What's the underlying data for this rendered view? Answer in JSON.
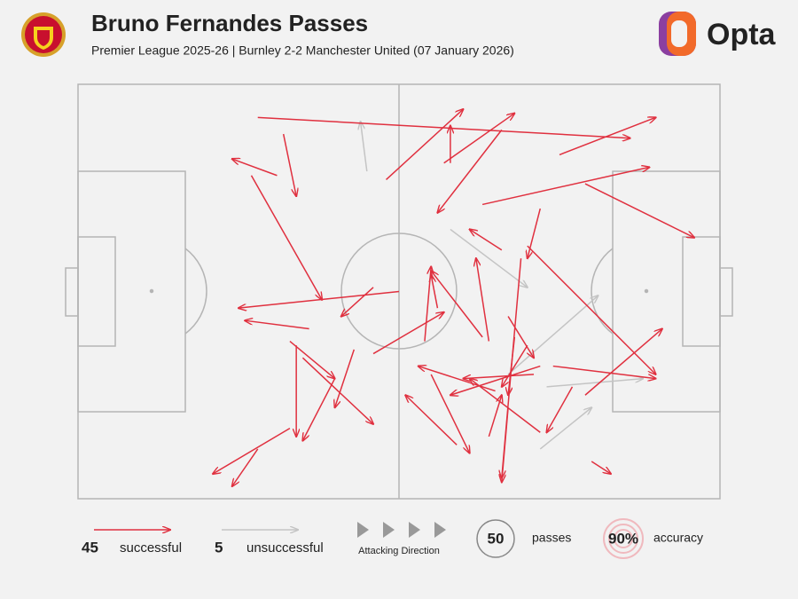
{
  "chart_data": {
    "type": "pass-map",
    "title": "Bruno Fernandes Passes",
    "subtitle": "Premier League 2025-26 | Burnley 2-2 Manchester United (07 January 2026)",
    "brand": "Opta",
    "xlim": [
      0,
      100
    ],
    "ylim": [
      0,
      100
    ],
    "series": [
      {
        "name": "successful",
        "color": "#e0303f",
        "count": 45,
        "passes": [
          [
            28,
            8,
            86,
            13
          ],
          [
            32,
            12,
            34,
            27
          ],
          [
            31,
            22,
            24,
            18
          ],
          [
            27,
            22,
            38,
            52
          ],
          [
            50,
            50,
            25,
            54
          ],
          [
            36,
            59,
            26,
            57
          ],
          [
            46,
            49,
            41,
            56
          ],
          [
            33,
            62,
            40,
            71
          ],
          [
            35,
            66,
            46,
            82
          ],
          [
            34,
            63,
            34,
            85
          ],
          [
            43,
            64,
            40,
            78
          ],
          [
            40,
            71,
            35,
            86
          ],
          [
            33,
            83,
            21,
            94
          ],
          [
            28,
            88,
            24,
            97
          ],
          [
            48,
            23,
            60,
            6
          ],
          [
            57,
            19,
            68,
            7
          ],
          [
            58,
            19,
            58,
            10
          ],
          [
            66,
            11,
            56,
            31
          ],
          [
            75,
            17,
            90,
            8
          ],
          [
            63,
            29,
            89,
            20
          ],
          [
            79,
            24,
            96,
            37
          ],
          [
            66,
            40,
            61,
            35
          ],
          [
            72,
            30,
            70,
            42
          ],
          [
            70,
            39,
            90,
            70
          ],
          [
            54,
            62,
            55,
            44
          ],
          [
            46,
            65,
            57,
            55
          ],
          [
            63,
            61,
            55,
            45
          ],
          [
            56,
            54,
            55,
            46
          ],
          [
            64,
            62,
            62,
            42
          ],
          [
            69,
            42,
            66,
            95
          ],
          [
            67,
            56,
            71,
            66
          ],
          [
            68,
            61,
            67,
            75
          ],
          [
            70,
            63,
            66,
            73
          ],
          [
            72,
            68,
            58,
            75
          ],
          [
            71,
            70,
            60,
            71
          ],
          [
            74,
            68,
            90,
            71
          ],
          [
            79,
            75,
            91,
            59
          ],
          [
            77,
            73,
            73,
            84
          ],
          [
            72,
            84,
            61,
            71
          ],
          [
            67,
            78,
            66,
            96
          ],
          [
            55,
            70,
            61,
            89
          ],
          [
            59,
            87,
            51,
            75
          ],
          [
            65,
            74,
            53,
            68
          ],
          [
            80,
            91,
            83,
            94
          ],
          [
            64,
            85,
            66,
            75
          ]
        ]
      },
      {
        "name": "unsuccessful",
        "color": "#c4c4c4",
        "count": 5,
        "passes": [
          [
            45,
            21,
            44,
            9
          ],
          [
            58,
            35,
            70,
            49
          ],
          [
            67,
            70,
            81,
            51
          ],
          [
            73,
            73,
            88,
            71
          ],
          [
            72,
            88,
            80,
            78
          ]
        ]
      }
    ],
    "direction_label": "Attacking Direction",
    "total": 50,
    "total_label": "passes",
    "accuracy": 90,
    "accuracy_value_label": "90%",
    "accuracy_label": "accuracy"
  }
}
